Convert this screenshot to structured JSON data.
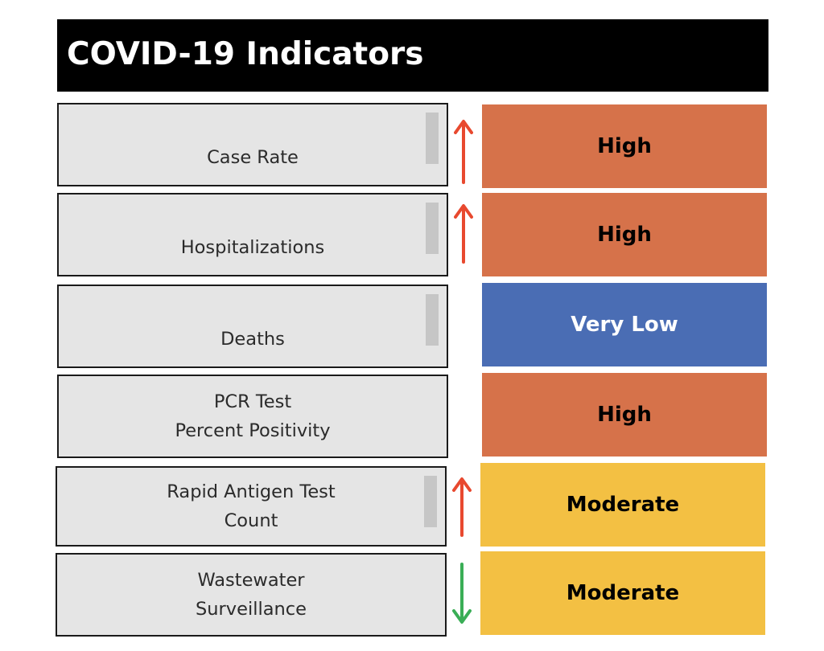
{
  "header": {
    "title": "COVID-19 Indicators"
  },
  "colors": {
    "high": "#D6724A",
    "very_low": "#4A6DB4",
    "moderate": "#F3C043",
    "trend_up": "#E8492F",
    "trend_down": "#3AAE56"
  },
  "indicators": [
    {
      "label": "Case Rate",
      "level": "High",
      "level_color": "#D6724A",
      "trend": "up-arrow-icon"
    },
    {
      "label": "Hospitalizations",
      "level": "High",
      "level_color": "#D6724A",
      "trend": "up-arrow-icon"
    },
    {
      "label": "Deaths",
      "level": "Very Low",
      "level_color": "#4A6DB4",
      "trend": ""
    },
    {
      "label": "PCR Test\nPercent Positivity",
      "level": "High",
      "level_color": "#D6724A",
      "trend": ""
    },
    {
      "label": "Rapid Antigen Test\nCount",
      "level": "Moderate",
      "level_color": "#F3C043",
      "trend": "up-arrow-icon"
    },
    {
      "label": "Wastewater\nSurveillance",
      "level": "Moderate",
      "level_color": "#F3C043",
      "trend": "down-arrow-icon"
    }
  ]
}
